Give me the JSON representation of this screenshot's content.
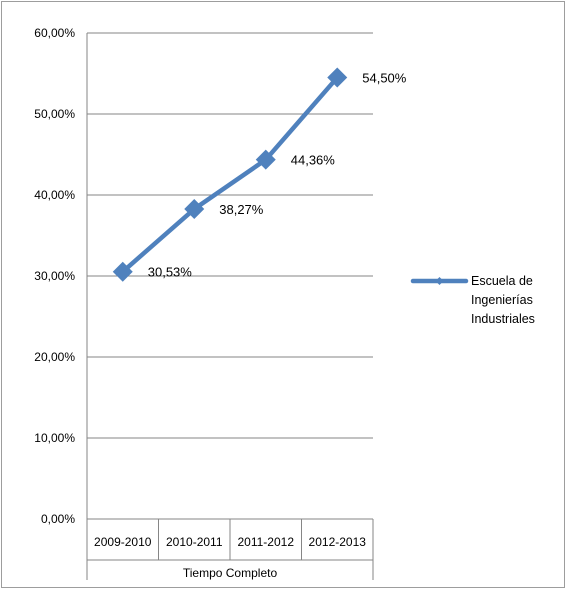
{
  "chart_data": {
    "type": "line",
    "categories": [
      "2009-2010",
      "2010-2011",
      "2011-2012",
      "2012-2013"
    ],
    "category_group": "Tiempo Completo",
    "series": [
      {
        "name": "Escuela de Ingenierías Industriales",
        "values": [
          30.53,
          38.27,
          44.36,
          54.5
        ],
        "labels": [
          "30,53%",
          "38,27%",
          "44,36%",
          "54,50%"
        ]
      }
    ],
    "legend_lines": [
      "Escuela de",
      "Ingenierías",
      "Industriales"
    ],
    "y_ticks": [
      "0,00%",
      "10,00%",
      "20,00%",
      "30,00%",
      "40,00%",
      "50,00%",
      "60,00%"
    ],
    "ylim": [
      0,
      60
    ],
    "grid": true,
    "legend_position": "right",
    "colors": {
      "series": "#4f81bd",
      "grid": "#868686",
      "axis": "#868686",
      "border": "#9d9d9d"
    }
  }
}
